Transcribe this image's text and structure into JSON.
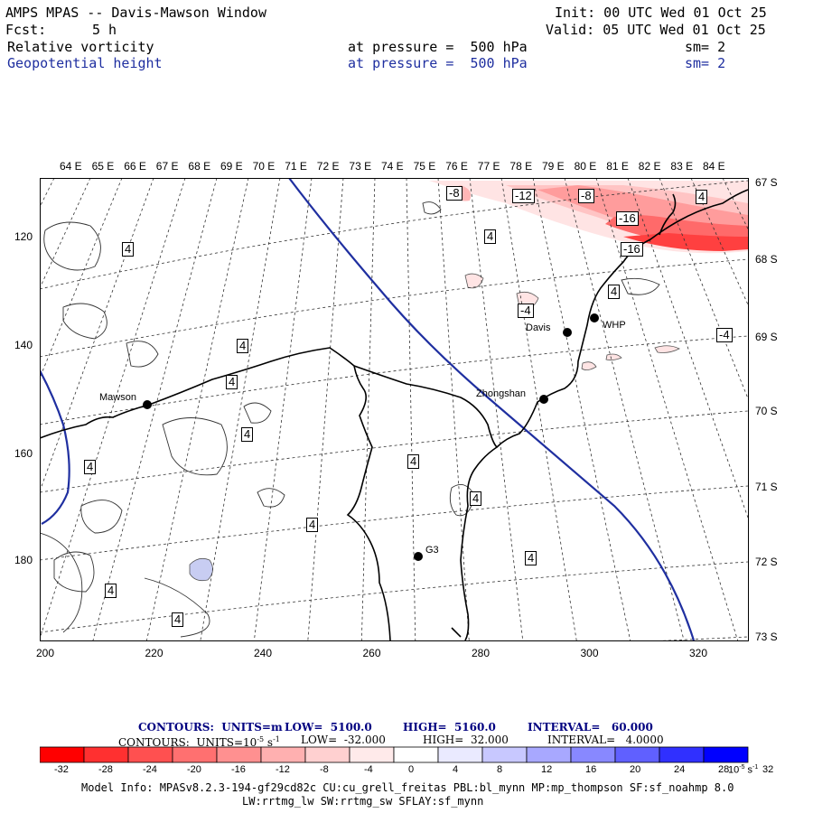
{
  "header": {
    "title": "AMPS MPAS -- Davis-Mawson Window",
    "init": "Init: 00 UTC Wed 01 Oct 25",
    "fcst_label": "Fcst:",
    "fcst_value": "5 h",
    "valid": "Valid: 05 UTC Wed 01 Oct 25",
    "field1": "Relative vorticity",
    "field1_pressure": "at pressure =  500 hPa",
    "field1_sm": "sm= 2",
    "field2": "Geopotential height",
    "field2_pressure": "at pressure =  500 hPa",
    "field2_sm": "sm= 2"
  },
  "map": {
    "top_lon_labels": [
      "64 E",
      "65 E",
      "66 E",
      "67 E",
      "68 E",
      "69 E",
      "70 E",
      "71 E",
      "72 E",
      "73 E",
      "74 E",
      "75 E",
      "76 E",
      "77 E",
      "78 E",
      "79 E",
      "80 E",
      "81 E",
      "82 E",
      "83 E",
      "84 E"
    ],
    "right_lat_labels": [
      "67 S",
      "68 S",
      "69 S",
      "70 S",
      "71 S",
      "72 S",
      "73 S"
    ],
    "left_y_ticks": [
      "120",
      "140",
      "160",
      "180"
    ],
    "bottom_x_ticks": [
      "200",
      "220",
      "240",
      "260",
      "280",
      "300",
      "320"
    ],
    "stations": [
      {
        "name": "Mawson"
      },
      {
        "name": "Davis"
      },
      {
        "name": "WHP"
      },
      {
        "name": "Zhongshan"
      },
      {
        "name": "G3"
      }
    ],
    "contour_labels": [
      "4",
      "4",
      "4",
      "4",
      "4",
      "4",
      "4",
      "4",
      "4",
      "4",
      "4",
      "4",
      "4",
      "4",
      "-4",
      "-4",
      "-8",
      "-8",
      "-12",
      "-16",
      "-16",
      "4"
    ],
    "colors": {
      "geopotential": "#1f2fa0",
      "negative_vorticity": "#e8404a",
      "positive_vorticity": "#c8cdf2"
    }
  },
  "footer": {
    "contour1_units": "CONTOURS:  UNITS=m",
    "contour1_low": "LOW=  5100.0",
    "contour1_high": "HIGH=  5160.0",
    "contour1_interval": "INTERVAL=   60.000",
    "contour2_units": "CONTOURS:  UNITS=10",
    "contour2_units_exp": "-5",
    "contour2_units_tail": " s",
    "contour2_units_exp2": "-1",
    "contour2_low": "LOW=  -32.000",
    "contour2_high": "HIGH=  32.000",
    "contour2_interval": "INTERVAL=   4.0000",
    "colorbar_ticks": [
      "-32",
      "-28",
      "-24",
      "-20",
      "-16",
      "-12",
      "-8",
      "-4",
      "0",
      "4",
      "8",
      "12",
      "16",
      "20",
      "24",
      "28",
      "32"
    ],
    "colorbar_units": "10",
    "colorbar_units_exp": "-5",
    "colorbar_units_tail": " s",
    "colorbar_units_exp2": "-1",
    "colorbar_colors": [
      "#ff0000",
      "#ff3030",
      "#ff5050",
      "#ff7070",
      "#ff9090",
      "#ffb0b0",
      "#ffd0d0",
      "#ffeaea",
      "#ffffff",
      "#ffffff",
      "#eaeaff",
      "#c8c8ff",
      "#a8a8ff",
      "#8888ff",
      "#6060ff",
      "#3030ff",
      "#0000ff"
    ],
    "model_info_line1": "Model Info: MPASv8.2.3-194-gf29cd82c CU:cu_grell_freitas PBL:bl_mynn MP:mp_thompson SF:sf_noahmp 8.0",
    "model_info_line2": "LW:rrtmg_lw SW:rrtmg_sw SFLAY:sf_mynn"
  }
}
